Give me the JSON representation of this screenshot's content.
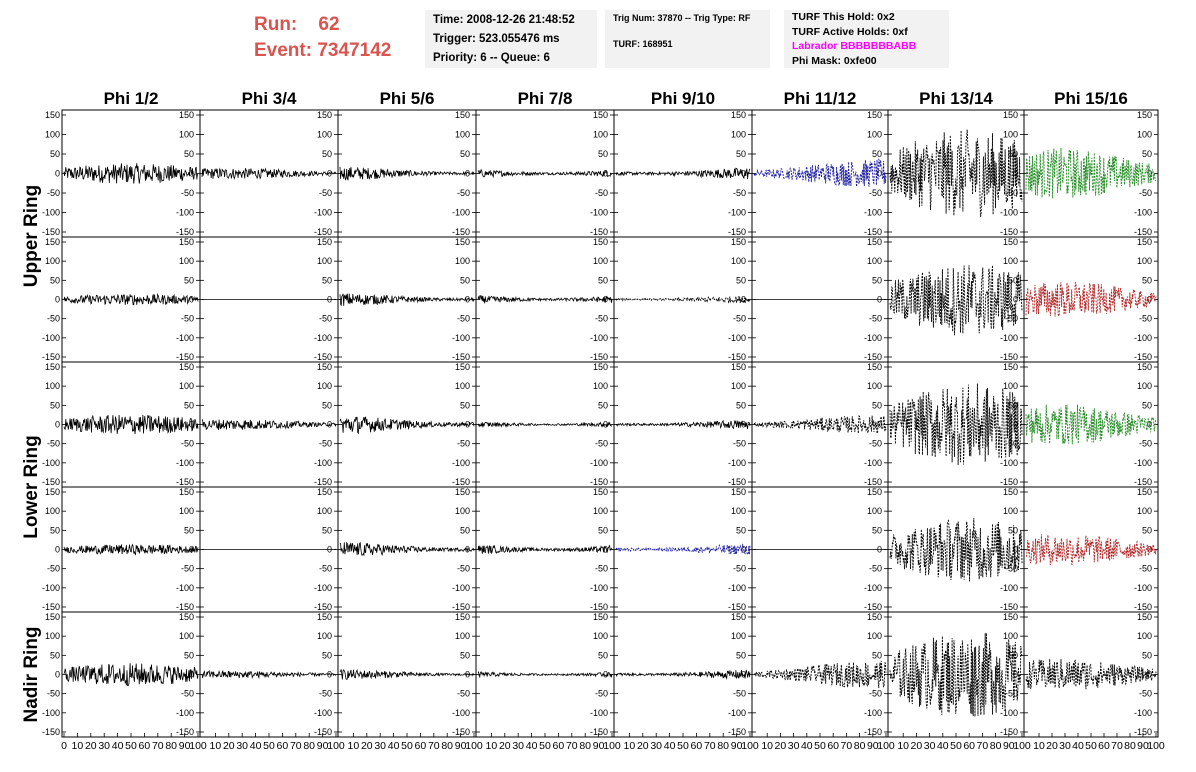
{
  "header": {
    "run_label": "Run:",
    "run_value": "62",
    "event_label": "Event:",
    "event_value": "7347142",
    "time": "Time: 2008-12-26 21:48:52",
    "trigger": "Trigger: 523.055476 ms",
    "priority": "Priority: 6 -- Queue: 6",
    "trig_num": "Trig Num: 37870 -- Trig Type: RF",
    "turf": "TURF: 168951",
    "turf_hold": "TURF This Hold: 0x2",
    "turf_active": "TURF Active Holds: 0xf",
    "labrador": "Labrador BBBBBBBABB",
    "phi_mask": "Phi Mask: 0xfe00"
  },
  "chart_data": {
    "type": "line",
    "columns": [
      "Phi 1/2",
      "Phi 3/4",
      "Phi 5/6",
      "Phi 7/8",
      "Phi 9/10",
      "Phi 11/12",
      "Phi 13/14",
      "Phi 15/16"
    ],
    "row_labels": [
      "Upper Ring",
      "Lower Ring",
      "Nadir Ring"
    ],
    "ylim": [
      -150,
      150
    ],
    "xlim": [
      0,
      100
    ],
    "yticks": [
      "150",
      "100",
      "50",
      "0",
      "-50",
      "-100",
      "-150"
    ],
    "xticks": [
      "0",
      "10",
      "20",
      "30",
      "40",
      "50",
      "60",
      "70",
      "80",
      "90",
      "100"
    ],
    "colors": {
      "black": "#000000",
      "blue": "#1a1aa0",
      "green": "#228b22",
      "red": "#b22222",
      "magenta": "#ff00ff",
      "run_red": "#d9534f"
    },
    "panels": [
      [
        {
          "amp": 22,
          "color": "black",
          "style": "solid"
        },
        {
          "amp": 12,
          "color": "black",
          "style": "solid"
        },
        {
          "amp": 16,
          "color": "black",
          "style": "solid"
        },
        {
          "amp": 14,
          "color": "black",
          "style": "solid"
        },
        {
          "amp": 15,
          "color": "black",
          "style": "solid"
        },
        {
          "amp": 30,
          "color": "blue",
          "style": "dashed"
        },
        {
          "amp": 95,
          "color": "black",
          "style": "dashed"
        },
        {
          "amp": 55,
          "color": "green",
          "style": "dashed"
        }
      ],
      [
        {
          "amp": 12,
          "color": "black",
          "style": "solid"
        },
        {
          "amp": 0,
          "color": "black",
          "style": "solid"
        },
        {
          "amp": 15,
          "color": "black",
          "style": "solid"
        },
        {
          "amp": 14,
          "color": "black",
          "style": "solid"
        },
        {
          "amp": 9,
          "color": "black",
          "style": "dashed"
        },
        {
          "amp": 0,
          "color": "black",
          "style": "solid"
        },
        {
          "amp": 80,
          "color": "black",
          "style": "dashed"
        },
        {
          "amp": 40,
          "color": "red",
          "style": "dashed"
        }
      ],
      [
        {
          "amp": 22,
          "color": "black",
          "style": "solid"
        },
        {
          "amp": 12,
          "color": "black",
          "style": "solid"
        },
        {
          "amp": 22,
          "color": "black",
          "style": "solid"
        },
        {
          "amp": 10,
          "color": "black",
          "style": "solid"
        },
        {
          "amp": 12,
          "color": "black",
          "style": "solid"
        },
        {
          "amp": 20,
          "color": "black",
          "style": "dashed"
        },
        {
          "amp": 90,
          "color": "black",
          "style": "dashed"
        },
        {
          "amp": 45,
          "color": "green",
          "style": "dashed"
        }
      ],
      [
        {
          "amp": 11,
          "color": "black",
          "style": "solid"
        },
        {
          "amp": 0,
          "color": "black",
          "style": "solid"
        },
        {
          "amp": 18,
          "color": "black",
          "style": "solid"
        },
        {
          "amp": 16,
          "color": "black",
          "style": "solid"
        },
        {
          "amp": 14,
          "color": "blue",
          "style": "dashed"
        },
        {
          "amp": 0,
          "color": "black",
          "style": "solid"
        },
        {
          "amp": 70,
          "color": "black",
          "style": "dashed"
        },
        {
          "amp": 35,
          "color": "red",
          "style": "dashed"
        }
      ],
      [
        {
          "amp": 25,
          "color": "black",
          "style": "solid"
        },
        {
          "amp": 8,
          "color": "black",
          "style": "solid"
        },
        {
          "amp": 12,
          "color": "black",
          "style": "solid"
        },
        {
          "amp": 9,
          "color": "black",
          "style": "solid"
        },
        {
          "amp": 12,
          "color": "black",
          "style": "solid"
        },
        {
          "amp": 30,
          "color": "black",
          "style": "dashed"
        },
        {
          "amp": 95,
          "color": "black",
          "style": "dashed"
        },
        {
          "amp": 35,
          "color": "black",
          "style": "dashed"
        }
      ]
    ]
  }
}
